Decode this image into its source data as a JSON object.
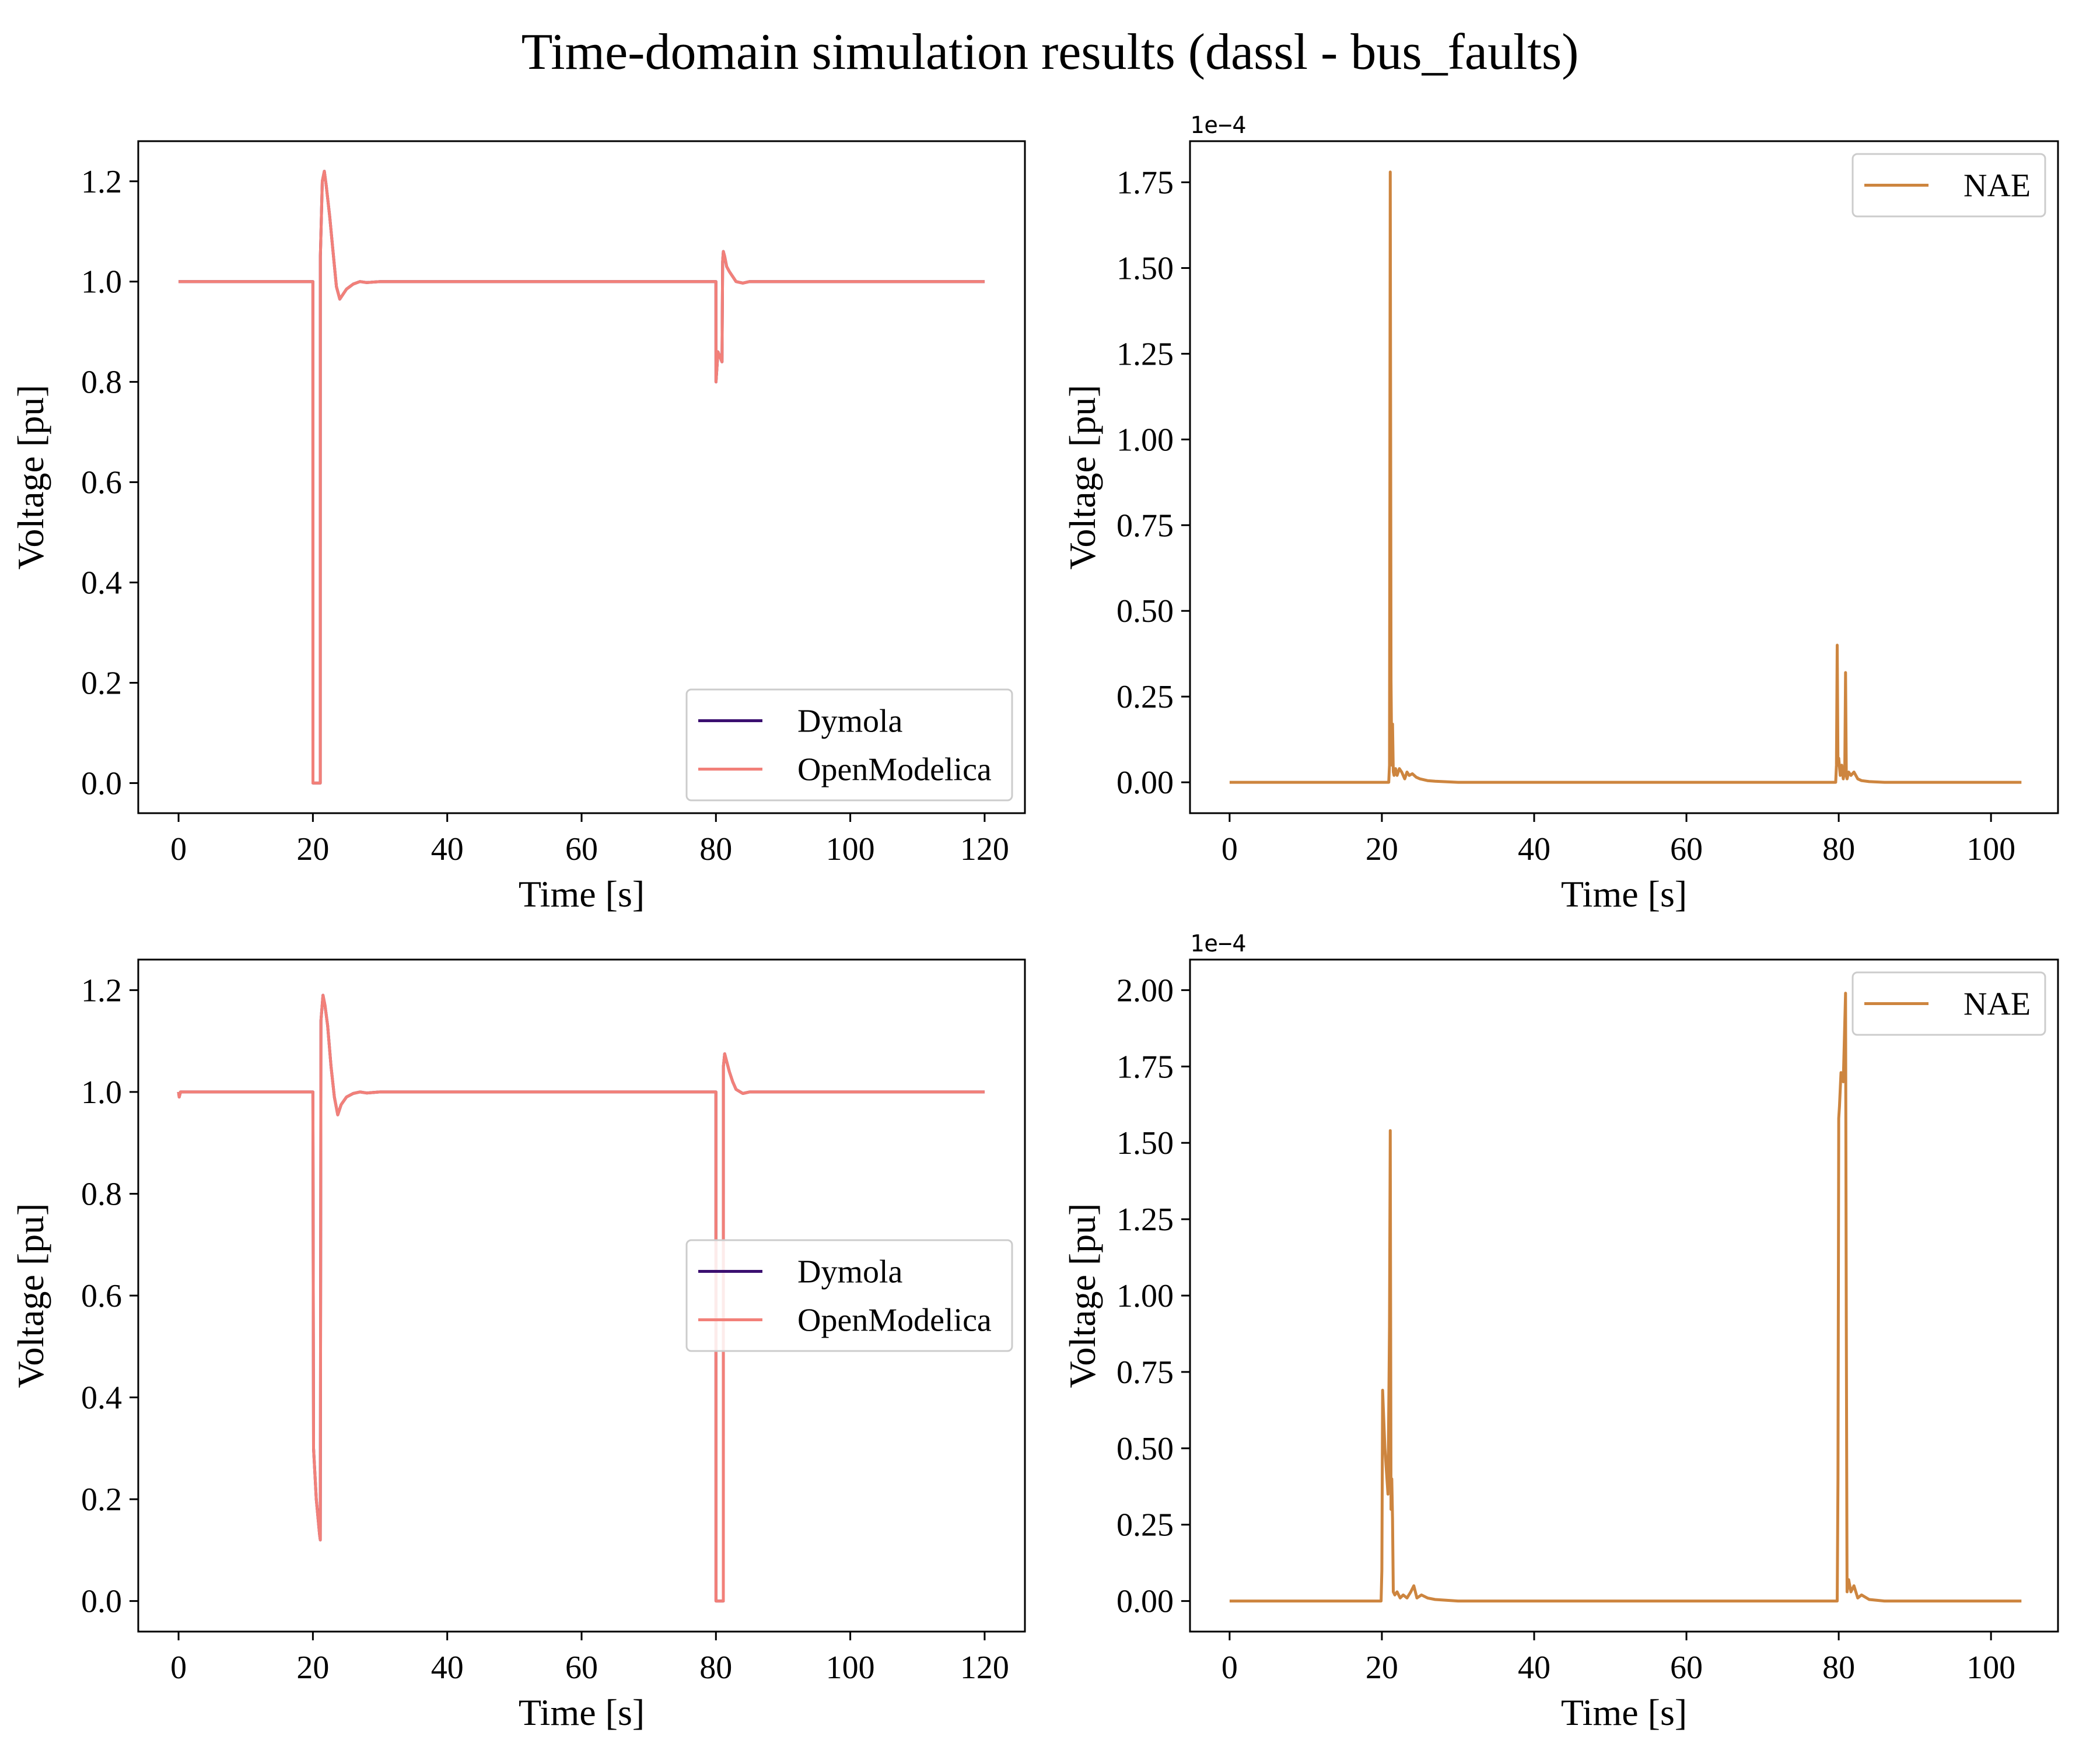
{
  "figure": {
    "title": "Time-domain simulation results (dassl - bus_faults)"
  },
  "chart_data": [
    {
      "type": "line",
      "panel": "top-left",
      "xlabel": "Time [s]",
      "ylabel": "Voltage [pu]",
      "xlim": [
        -6,
        126
      ],
      "ylim": [
        -0.06,
        1.28
      ],
      "xticks": [
        0,
        20,
        40,
        60,
        80,
        100,
        120
      ],
      "yticks": [
        0.0,
        0.2,
        0.4,
        0.6,
        0.8,
        1.0,
        1.2
      ],
      "ytick_labels": [
        "0.0",
        "0.2",
        "0.4",
        "0.6",
        "0.8",
        "1.0",
        "1.2"
      ],
      "offset_text": "",
      "legend": {
        "position": "lower right",
        "entries": [
          "Dymola",
          "OpenModelica"
        ]
      },
      "series": [
        {
          "name": "Dymola",
          "color": "#3b0f70",
          "x": [
            0,
            20,
            20.01,
            21.1,
            21.11,
            21.4,
            21.7,
            22.0,
            22.5,
            23.0,
            23.5,
            24.0,
            24.5,
            25,
            26,
            27,
            28,
            30,
            35,
            80,
            80.01,
            80.3,
            80.6,
            80.9,
            81.0,
            81.1,
            81.3,
            81.6,
            82,
            82.5,
            83,
            84,
            85,
            87,
            90,
            120
          ],
          "y": [
            1.0,
            1.0,
            0.0,
            0.0,
            1.05,
            1.2,
            1.22,
            1.19,
            1.13,
            1.06,
            0.99,
            0.965,
            0.975,
            0.985,
            0.995,
            1.0,
            0.998,
            1.0,
            1.0,
            1.0,
            0.8,
            0.86,
            0.85,
            0.84,
            1.04,
            1.06,
            1.05,
            1.03,
            1.02,
            1.01,
            1.0,
            0.997,
            1.0,
            1.0,
            1.0,
            1.0
          ]
        },
        {
          "name": "OpenModelica",
          "color": "#f28079",
          "x": [
            0,
            20,
            20.01,
            21.1,
            21.11,
            21.4,
            21.7,
            22.0,
            22.5,
            23.0,
            23.5,
            24.0,
            24.5,
            25,
            26,
            27,
            28,
            30,
            35,
            80,
            80.01,
            80.3,
            80.6,
            80.9,
            81.0,
            81.1,
            81.3,
            81.6,
            82,
            82.5,
            83,
            84,
            85,
            87,
            90,
            120
          ],
          "y": [
            1.0,
            1.0,
            0.0,
            0.0,
            1.05,
            1.2,
            1.22,
            1.19,
            1.13,
            1.06,
            0.99,
            0.965,
            0.975,
            0.985,
            0.995,
            1.0,
            0.998,
            1.0,
            1.0,
            1.0,
            0.8,
            0.86,
            0.85,
            0.84,
            1.04,
            1.06,
            1.05,
            1.03,
            1.02,
            1.01,
            1.0,
            0.997,
            1.0,
            1.0,
            1.0,
            1.0
          ]
        }
      ]
    },
    {
      "type": "line",
      "panel": "top-right",
      "xlabel": "Time [s]",
      "ylabel": "Voltage [pu]",
      "xlim": [
        -5.2,
        108.8
      ],
      "ylim": [
        -0.09,
        1.87
      ],
      "xticks": [
        0,
        20,
        40,
        60,
        80,
        100
      ],
      "yticks": [
        0.0,
        0.25,
        0.5,
        0.75,
        1.0,
        1.25,
        1.5,
        1.75
      ],
      "ytick_labels": [
        "0.00",
        "0.25",
        "0.50",
        "0.75",
        "1.00",
        "1.25",
        "1.50",
        "1.75"
      ],
      "offset_text": "1e−4",
      "legend": {
        "position": "upper right",
        "entries": [
          "NAE"
        ]
      },
      "series": [
        {
          "name": "NAE",
          "color": "#cd853f",
          "x": [
            0,
            20.9,
            21.0,
            21.1,
            21.2,
            21.3,
            21.4,
            21.5,
            21.6,
            21.8,
            22.0,
            22.3,
            22.6,
            23.0,
            23.3,
            23.6,
            24.0,
            24.5,
            25,
            26,
            27,
            28,
            30,
            79.6,
            79.7,
            79.8,
            79.9,
            80.0,
            80.2,
            80.4,
            80.6,
            80.8,
            80.9,
            81.0,
            81.1,
            81.3,
            81.6,
            82.0,
            82.5,
            83,
            84,
            86,
            104
          ],
          "y": [
            0,
            0,
            0.05,
            1.78,
            0.3,
            0.05,
            0.17,
            0.03,
            0.02,
            0.04,
            0.02,
            0.04,
            0.03,
            0.01,
            0.03,
            0.02,
            0.025,
            0.015,
            0.01,
            0.005,
            0.003,
            0.002,
            0,
            0,
            0.05,
            0.4,
            0.05,
            0.07,
            0.02,
            0.05,
            0.01,
            0.04,
            0.32,
            0.02,
            0.01,
            0.03,
            0.02,
            0.03,
            0.01,
            0.005,
            0.002,
            0,
            0
          ]
        }
      ]
    },
    {
      "type": "line",
      "panel": "bottom-left",
      "xlabel": "Time [s]",
      "ylabel": "Voltage [pu]",
      "xlim": [
        -6,
        126
      ],
      "ylim": [
        -0.06,
        1.26
      ],
      "xticks": [
        0,
        20,
        40,
        60,
        80,
        100,
        120
      ],
      "yticks": [
        0.0,
        0.2,
        0.4,
        0.6,
        0.8,
        1.0,
        1.2
      ],
      "ytick_labels": [
        "0.0",
        "0.2",
        "0.4",
        "0.6",
        "0.8",
        "1.0",
        "1.2"
      ],
      "offset_text": "",
      "legend": {
        "position": "center right",
        "entries": [
          "Dymola",
          "OpenModelica"
        ]
      },
      "series": [
        {
          "name": "Dymola",
          "color": "#3b0f70",
          "x": [
            0,
            0.1,
            0.3,
            20,
            20.1,
            20.5,
            21.0,
            21.1,
            21.2,
            21.5,
            21.8,
            22.2,
            22.7,
            23.2,
            23.7,
            24.2,
            25,
            26,
            27,
            28,
            30,
            80,
            80.01,
            81.1,
            81.11,
            81.3,
            81.6,
            82,
            82.5,
            83,
            84,
            85,
            87,
            90,
            120
          ],
          "y": [
            1.0,
            0.99,
            1.0,
            1.0,
            0.3,
            0.2,
            0.13,
            0.12,
            1.14,
            1.19,
            1.17,
            1.13,
            1.05,
            0.99,
            0.955,
            0.975,
            0.99,
            0.997,
            1.0,
            0.998,
            1.0,
            1.0,
            0.0,
            0.0,
            1.05,
            1.075,
            1.06,
            1.04,
            1.02,
            1.005,
            0.997,
            1.0,
            1.0,
            1.0,
            1.0
          ]
        },
        {
          "name": "OpenModelica",
          "color": "#f28079",
          "x": [
            0,
            0.1,
            0.3,
            20,
            20.1,
            20.5,
            21.0,
            21.1,
            21.2,
            21.5,
            21.8,
            22.2,
            22.7,
            23.2,
            23.7,
            24.2,
            25,
            26,
            27,
            28,
            30,
            80,
            80.01,
            81.1,
            81.11,
            81.3,
            81.6,
            82,
            82.5,
            83,
            84,
            85,
            87,
            90,
            120
          ],
          "y": [
            1.0,
            0.99,
            1.0,
            1.0,
            0.3,
            0.2,
            0.13,
            0.12,
            1.14,
            1.19,
            1.17,
            1.13,
            1.05,
            0.99,
            0.955,
            0.975,
            0.99,
            0.997,
            1.0,
            0.998,
            1.0,
            1.0,
            0.0,
            0.0,
            1.05,
            1.075,
            1.06,
            1.04,
            1.02,
            1.005,
            0.997,
            1.0,
            1.0,
            1.0,
            1.0
          ]
        }
      ]
    },
    {
      "type": "line",
      "panel": "bottom-right",
      "xlabel": "Time [s]",
      "ylabel": "Voltage [pu]",
      "xlim": [
        -5.2,
        108.8
      ],
      "ylim": [
        -0.1,
        2.1
      ],
      "xticks": [
        0,
        20,
        40,
        60,
        80,
        100
      ],
      "yticks": [
        0.0,
        0.25,
        0.5,
        0.75,
        1.0,
        1.25,
        1.5,
        1.75,
        2.0
      ],
      "ytick_labels": [
        "0.00",
        "0.25",
        "0.50",
        "0.75",
        "1.00",
        "1.25",
        "1.50",
        "1.75",
        "2.00"
      ],
      "offset_text": "1e−4",
      "legend": {
        "position": "upper right",
        "entries": [
          "NAE"
        ]
      },
      "series": [
        {
          "name": "NAE",
          "color": "#cd853f",
          "x": [
            0,
            19.9,
            20.0,
            20.1,
            20.4,
            20.8,
            21.0,
            21.1,
            21.2,
            21.3,
            21.4,
            21.5,
            21.7,
            22.0,
            22.4,
            22.8,
            23.3,
            23.8,
            24.2,
            24.6,
            25.2,
            26,
            27,
            30,
            79.8,
            79.9,
            80.0,
            80.1,
            80.3,
            80.6,
            80.9,
            81.0,
            81.1,
            81.2,
            81.3,
            81.6,
            82.0,
            82.5,
            83.0,
            84,
            86,
            104
          ],
          "y": [
            0,
            0,
            0.1,
            0.69,
            0.5,
            0.35,
            0.9,
            1.54,
            0.3,
            0.4,
            0.27,
            0.03,
            0.02,
            0.03,
            0.01,
            0.02,
            0.01,
            0.03,
            0.05,
            0.01,
            0.02,
            0.01,
            0.005,
            0,
            0,
            0.4,
            1.58,
            1.62,
            1.73,
            1.7,
            1.99,
            0.9,
            0.03,
            0.05,
            0.07,
            0.03,
            0.05,
            0.01,
            0.02,
            0.005,
            0,
            0
          ]
        }
      ]
    }
  ]
}
